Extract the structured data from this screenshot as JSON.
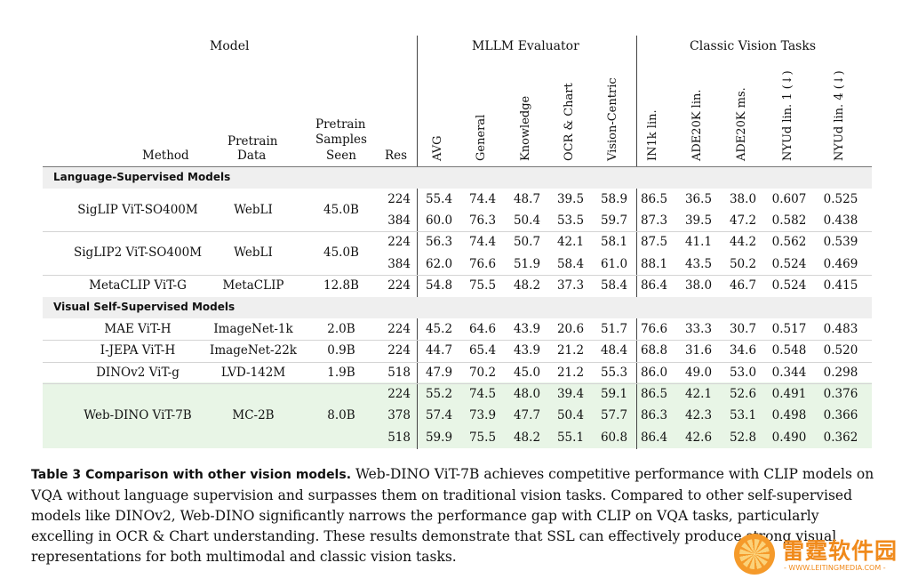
{
  "header": {
    "model_group": "Model",
    "mllm_group": "MLLM Evaluator",
    "vision_group": "Classic Vision Tasks",
    "method": "Method",
    "pretrain_data_1": "Pretrain",
    "pretrain_data_2": "Data",
    "samples_1": "Pretrain",
    "samples_2": "Samples",
    "samples_3": "Seen",
    "res": "Res",
    "metrics": [
      "AVG",
      "General",
      "Knowledge",
      "OCR & Chart",
      "Vision-Centric",
      "IN1k lin.",
      "ADE20K lin.",
      "ADE20K ms.",
      "NYUd lin. 1 (↓)",
      "NYUd lin. 4 (↓)"
    ]
  },
  "sections": {
    "lang": "Language-Supervised Models",
    "ssl": "Visual Self-Supervised Models"
  },
  "models": [
    {
      "method": "SigLIP ViT-SO400M",
      "data": "WebLI",
      "samples": "45.0B",
      "rows": [
        {
          "res": "224",
          "vals": [
            "55.4",
            "74.4",
            "48.7",
            "39.5",
            "58.9",
            "86.5",
            "36.5",
            "38.0",
            "0.607",
            "0.525"
          ]
        },
        {
          "res": "384",
          "vals": [
            "60.0",
            "76.3",
            "50.4",
            "53.5",
            "59.7",
            "87.3",
            "39.5",
            "47.2",
            "0.582",
            "0.438"
          ]
        }
      ]
    },
    {
      "method": "SigLIP2 ViT-SO400M",
      "data": "WebLI",
      "samples": "45.0B",
      "rows": [
        {
          "res": "224",
          "vals": [
            "56.3",
            "74.4",
            "50.7",
            "42.1",
            "58.1",
            "87.5",
            "41.1",
            "44.2",
            "0.562",
            "0.539"
          ]
        },
        {
          "res": "384",
          "vals": [
            "62.0",
            "76.6",
            "51.9",
            "58.4",
            "61.0",
            "88.1",
            "43.5",
            "50.2",
            "0.524",
            "0.469"
          ]
        }
      ]
    },
    {
      "method": "MetaCLIP ViT-G",
      "data": "MetaCLIP",
      "samples": "12.8B",
      "rows": [
        {
          "res": "224",
          "vals": [
            "54.8",
            "75.5",
            "48.2",
            "37.3",
            "58.4",
            "86.4",
            "38.0",
            "46.7",
            "0.524",
            "0.415"
          ]
        }
      ]
    },
    {
      "method": "MAE ViT-H",
      "data": "ImageNet-1k",
      "samples": "2.0B",
      "rows": [
        {
          "res": "224",
          "vals": [
            "45.2",
            "64.6",
            "43.9",
            "20.6",
            "51.7",
            "76.6",
            "33.3",
            "30.7",
            "0.517",
            "0.483"
          ]
        }
      ]
    },
    {
      "method": "I-JEPA ViT-H",
      "data": "ImageNet-22k",
      "samples": "0.9B",
      "rows": [
        {
          "res": "224",
          "vals": [
            "44.7",
            "65.4",
            "43.9",
            "21.2",
            "48.4",
            "68.8",
            "31.6",
            "34.6",
            "0.548",
            "0.520"
          ]
        }
      ]
    },
    {
      "method": "DINOv2 ViT-g",
      "data": "LVD-142M",
      "samples": "1.9B",
      "rows": [
        {
          "res": "518",
          "vals": [
            "47.9",
            "70.2",
            "45.0",
            "21.2",
            "55.3",
            "86.0",
            "49.0",
            "53.0",
            "0.344",
            "0.298"
          ]
        }
      ]
    },
    {
      "method": "Web-DINO ViT-7B",
      "data": "MC-2B",
      "samples": "8.0B",
      "rows": [
        {
          "res": "224",
          "vals": [
            "55.2",
            "74.5",
            "48.0",
            "39.4",
            "59.1",
            "86.5",
            "42.1",
            "52.6",
            "0.491",
            "0.376"
          ]
        },
        {
          "res": "378",
          "vals": [
            "57.4",
            "73.9",
            "47.7",
            "50.4",
            "57.7",
            "86.3",
            "42.3",
            "53.1",
            "0.498",
            "0.366"
          ]
        },
        {
          "res": "518",
          "vals": [
            "59.9",
            "75.5",
            "48.2",
            "55.1",
            "60.8",
            "86.4",
            "42.6",
            "52.8",
            "0.490",
            "0.362"
          ]
        }
      ]
    }
  ],
  "caption": {
    "label": "Table 3",
    "title": "Comparison with other vision models.",
    "text": "Web-DINO ViT-7B achieves competitive performance with CLIP models on VQA without language supervision and surpasses them on traditional vision tasks. Compared to other self-supervised models like DINOv2, Web-DINO significantly narrows the performance gap with CLIP on VQA tasks, particularly excelling in OCR & Chart understanding. These results demonstrate that SSL can effectively produce strong visual representations for both multimodal and classic vision tasks."
  },
  "watermark": {
    "title": "雷霆软件园",
    "url": "- WWW.LEITINGMEDIA.COM -"
  },
  "colors": {
    "highlight": "#e8f5e6",
    "band": "#efefef",
    "watermark": "#f08a1c"
  }
}
